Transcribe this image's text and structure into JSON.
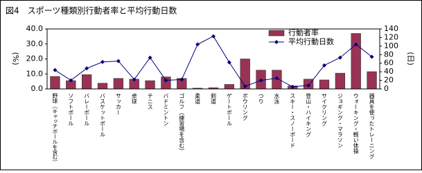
{
  "chart_data": {
    "type": "bar",
    "title": "図4　スポーツ種類別行動者率と平均行動日数",
    "y_label": "(%)",
    "y2_label": "(日)",
    "categories": [
      "野球（キャッチボールを含む）",
      "ソフトボール",
      "バレーボール",
      "バスケットボール",
      "サッカー",
      "卓球",
      "テニス",
      "バドミントン",
      "ゴルフ（練習場を含む）",
      "柔道",
      "剣道",
      "ゲートボール",
      "ボウリング",
      "つり",
      "水泳",
      "スキー・スノーボード",
      "登山・ハイキング",
      "サイクリング",
      "ジョギング・マラソン",
      "ウォーキング・軽い体操",
      "器具を使ったトレーニング"
    ],
    "series": [
      {
        "name": "行動者率",
        "type": "bar",
        "color": "#993355",
        "values": [
          8.3,
          5.5,
          9.5,
          3.8,
          7.0,
          6.5,
          5.5,
          8.0,
          7.0,
          0.5,
          0.8,
          3.0,
          20.0,
          12.5,
          12.5,
          2.0,
          6.5,
          6.0,
          10.5,
          37.0,
          11.5
        ]
      },
      {
        "name": "平均行動日数",
        "type": "line",
        "axis": "y2",
        "color": "#000080",
        "values": [
          44,
          20,
          48,
          63,
          65,
          22,
          73,
          20,
          22,
          104,
          123,
          62,
          6,
          20,
          25,
          5,
          8,
          55,
          73,
          104,
          75
        ]
      }
    ],
    "ylim": [
      0,
      40
    ],
    "yticks": [
      {
        "value": 0,
        "label": "0.0"
      },
      {
        "value": 10,
        "label": "10.0"
      },
      {
        "value": 20,
        "label": "20.0"
      },
      {
        "value": 30,
        "label": "30.0"
      },
      {
        "value": 40,
        "label": "40.0"
      }
    ],
    "y2lim": [
      0,
      140
    ],
    "y2ticks": [
      0,
      20,
      40,
      60,
      80,
      100,
      120,
      140
    ],
    "legend": "upper right"
  }
}
